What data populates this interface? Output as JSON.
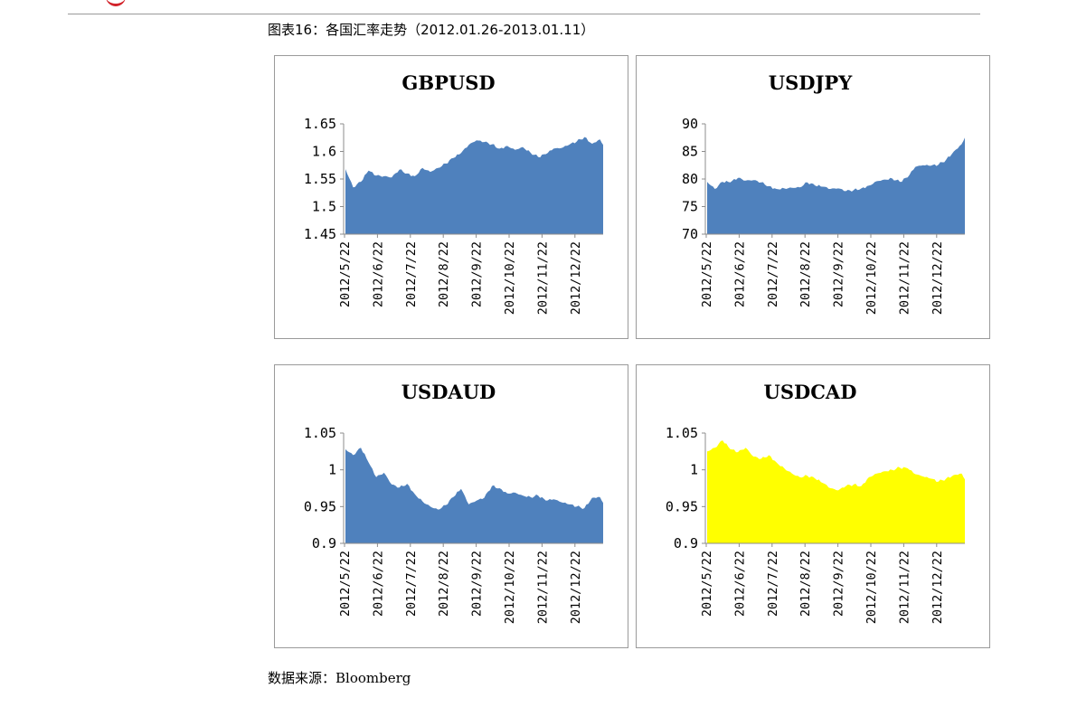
{
  "header": {
    "figure_title": "图表16：各国汇率走势（2012.01.26-2013.01.11）"
  },
  "footer": {
    "source_label": "数据来源",
    "source_sep": "：",
    "source_value": "Bloomberg"
  },
  "colors": {
    "blue": "#4f81bd",
    "yellow": "#ffff00",
    "axis": "#8c8c8c",
    "border": "#9a9a9a"
  },
  "chart_data": [
    {
      "type": "area",
      "title": "GBPUSD",
      "color": "#4f81bd",
      "ylim": [
        1.45,
        1.65
      ],
      "yticks": [
        "1.65",
        "1.6",
        "1.55",
        "1.5",
        "1.45"
      ],
      "ytick_values": [
        1.65,
        1.6,
        1.55,
        1.5,
        1.45
      ],
      "xticks": [
        "2012/5/22",
        "2012/6/22",
        "2012/7/22",
        "2012/8/22",
        "2012/9/22",
        "2012/10/22",
        "2012/11/22",
        "2012/12/22"
      ],
      "xlabel": "",
      "ylabel": "",
      "grid": false,
      "legend": "none",
      "x": [
        "2012/5/22",
        "2012/5/29",
        "2012/6/5",
        "2012/6/12",
        "2012/6/19",
        "2012/6/26",
        "2012/7/3",
        "2012/7/10",
        "2012/7/17",
        "2012/7/24",
        "2012/7/31",
        "2012/8/7",
        "2012/8/14",
        "2012/8/21",
        "2012/8/28",
        "2012/9/4",
        "2012/9/11",
        "2012/9/18",
        "2012/9/25",
        "2012/10/2",
        "2012/10/9",
        "2012/10/16",
        "2012/10/23",
        "2012/10/30",
        "2012/11/6",
        "2012/11/13",
        "2012/11/20",
        "2012/11/27",
        "2012/12/4",
        "2012/12/11",
        "2012/12/18",
        "2012/12/25",
        "2013/1/1",
        "2013/1/8",
        "2013/1/11"
      ],
      "values": [
        1.568,
        1.535,
        1.545,
        1.565,
        1.556,
        1.555,
        1.553,
        1.567,
        1.56,
        1.555,
        1.57,
        1.563,
        1.57,
        1.578,
        1.588,
        1.597,
        1.612,
        1.62,
        1.617,
        1.613,
        1.605,
        1.61,
        1.603,
        1.608,
        1.598,
        1.59,
        1.595,
        1.605,
        1.606,
        1.612,
        1.618,
        1.626,
        1.614,
        1.622,
        1.612
      ]
    },
    {
      "type": "area",
      "title": "USDJPY",
      "color": "#4f81bd",
      "ylim": [
        70,
        90
      ],
      "yticks": [
        "90",
        "85",
        "80",
        "75",
        "70"
      ],
      "ytick_values": [
        90,
        85,
        80,
        75,
        70
      ],
      "xticks": [
        "2012/5/22",
        "2012/6/22",
        "2012/7/22",
        "2012/8/22",
        "2012/9/22",
        "2012/10/22",
        "2012/11/22",
        "2012/12/22"
      ],
      "xlabel": "",
      "ylabel": "",
      "grid": false,
      "legend": "none",
      "x": [
        "2012/5/22",
        "2012/5/29",
        "2012/6/5",
        "2012/6/12",
        "2012/6/19",
        "2012/6/26",
        "2012/7/3",
        "2012/7/10",
        "2012/7/17",
        "2012/7/24",
        "2012/7/31",
        "2012/8/7",
        "2012/8/14",
        "2012/8/21",
        "2012/8/28",
        "2012/9/4",
        "2012/9/11",
        "2012/9/18",
        "2012/9/25",
        "2012/10/2",
        "2012/10/9",
        "2012/10/16",
        "2012/10/23",
        "2012/10/30",
        "2012/11/6",
        "2012/11/13",
        "2012/11/20",
        "2012/11/27",
        "2012/12/4",
        "2012/12/11",
        "2012/12/18",
        "2012/12/25",
        "2013/1/1",
        "2013/1/8",
        "2013/1/11"
      ],
      "values": [
        79.5,
        78.2,
        79.5,
        79.4,
        80.2,
        79.7,
        79.8,
        79.4,
        78.7,
        78.2,
        78.3,
        78.4,
        78.5,
        79.4,
        78.8,
        78.6,
        78.2,
        78.3,
        77.8,
        78.0,
        78.3,
        78.8,
        79.6,
        79.9,
        80.1,
        79.5,
        80.3,
        82.2,
        82.5,
        82.4,
        82.6,
        83.5,
        85.0,
        86.3,
        87.5
      ]
    },
    {
      "type": "area",
      "title": "USDAUD",
      "color": "#4f81bd",
      "ylim": [
        0.9,
        1.05
      ],
      "yticks": [
        "1.05",
        "1",
        "0.95",
        "0.9"
      ],
      "ytick_values": [
        1.05,
        1.0,
        0.95,
        0.9
      ],
      "xticks": [
        "2012/5/22",
        "2012/6/22",
        "2012/7/22",
        "2012/8/22",
        "2012/9/22",
        "2012/10/22",
        "2012/11/22",
        "2012/12/22"
      ],
      "xlabel": "",
      "ylabel": "",
      "grid": false,
      "legend": "none",
      "x": [
        "2012/5/22",
        "2012/5/29",
        "2012/6/5",
        "2012/6/12",
        "2012/6/19",
        "2012/6/26",
        "2012/7/3",
        "2012/7/10",
        "2012/7/17",
        "2012/7/24",
        "2012/7/31",
        "2012/8/7",
        "2012/8/14",
        "2012/8/21",
        "2012/8/28",
        "2012/9/4",
        "2012/9/11",
        "2012/9/18",
        "2012/9/25",
        "2012/10/2",
        "2012/10/9",
        "2012/10/16",
        "2012/10/23",
        "2012/10/30",
        "2012/11/6",
        "2012/11/13",
        "2012/11/20",
        "2012/11/27",
        "2012/12/4",
        "2012/12/11",
        "2012/12/18",
        "2012/12/25",
        "2013/1/1",
        "2013/1/8",
        "2013/1/11"
      ],
      "values": [
        1.028,
        1.02,
        1.03,
        1.01,
        0.99,
        0.996,
        0.98,
        0.976,
        0.981,
        0.967,
        0.957,
        0.95,
        0.946,
        0.952,
        0.963,
        0.974,
        0.953,
        0.958,
        0.962,
        0.978,
        0.975,
        0.968,
        0.969,
        0.965,
        0.963,
        0.965,
        0.958,
        0.96,
        0.956,
        0.953,
        0.95,
        0.948,
        0.962,
        0.963,
        0.955
      ]
    },
    {
      "type": "area",
      "title": "USDCAD",
      "color": "#ffff00",
      "ylim": [
        0.9,
        1.05
      ],
      "yticks": [
        "1.05",
        "1",
        "0.95",
        "0.9"
      ],
      "ytick_values": [
        1.05,
        1.0,
        0.95,
        0.9
      ],
      "xticks": [
        "2012/5/22",
        "2012/6/22",
        "2012/7/22",
        "2012/8/22",
        "2012/9/22",
        "2012/10/22",
        "2012/11/22",
        "2012/12/22"
      ],
      "xlabel": "",
      "ylabel": "",
      "grid": false,
      "legend": "none",
      "x": [
        "2012/5/22",
        "2012/5/29",
        "2012/6/5",
        "2012/6/12",
        "2012/6/19",
        "2012/6/26",
        "2012/7/3",
        "2012/7/10",
        "2012/7/17",
        "2012/7/24",
        "2012/7/31",
        "2012/8/7",
        "2012/8/14",
        "2012/8/21",
        "2012/8/28",
        "2012/9/4",
        "2012/9/11",
        "2012/9/18",
        "2012/9/25",
        "2012/10/2",
        "2012/10/9",
        "2012/10/16",
        "2012/10/23",
        "2012/10/30",
        "2012/11/6",
        "2012/11/13",
        "2012/11/20",
        "2012/11/27",
        "2012/12/4",
        "2012/12/11",
        "2012/12/18",
        "2012/12/25",
        "2013/1/1",
        "2013/1/8",
        "2013/1/11"
      ],
      "values": [
        1.025,
        1.03,
        1.04,
        1.028,
        1.024,
        1.03,
        1.018,
        1.015,
        1.02,
        1.01,
        1.002,
        0.995,
        0.99,
        0.992,
        0.988,
        0.982,
        0.975,
        0.972,
        0.978,
        0.98,
        0.978,
        0.99,
        0.995,
        0.998,
        1.0,
        1.003,
        1.002,
        0.994,
        0.991,
        0.988,
        0.984,
        0.988,
        0.993,
        0.995,
        0.987
      ]
    }
  ]
}
